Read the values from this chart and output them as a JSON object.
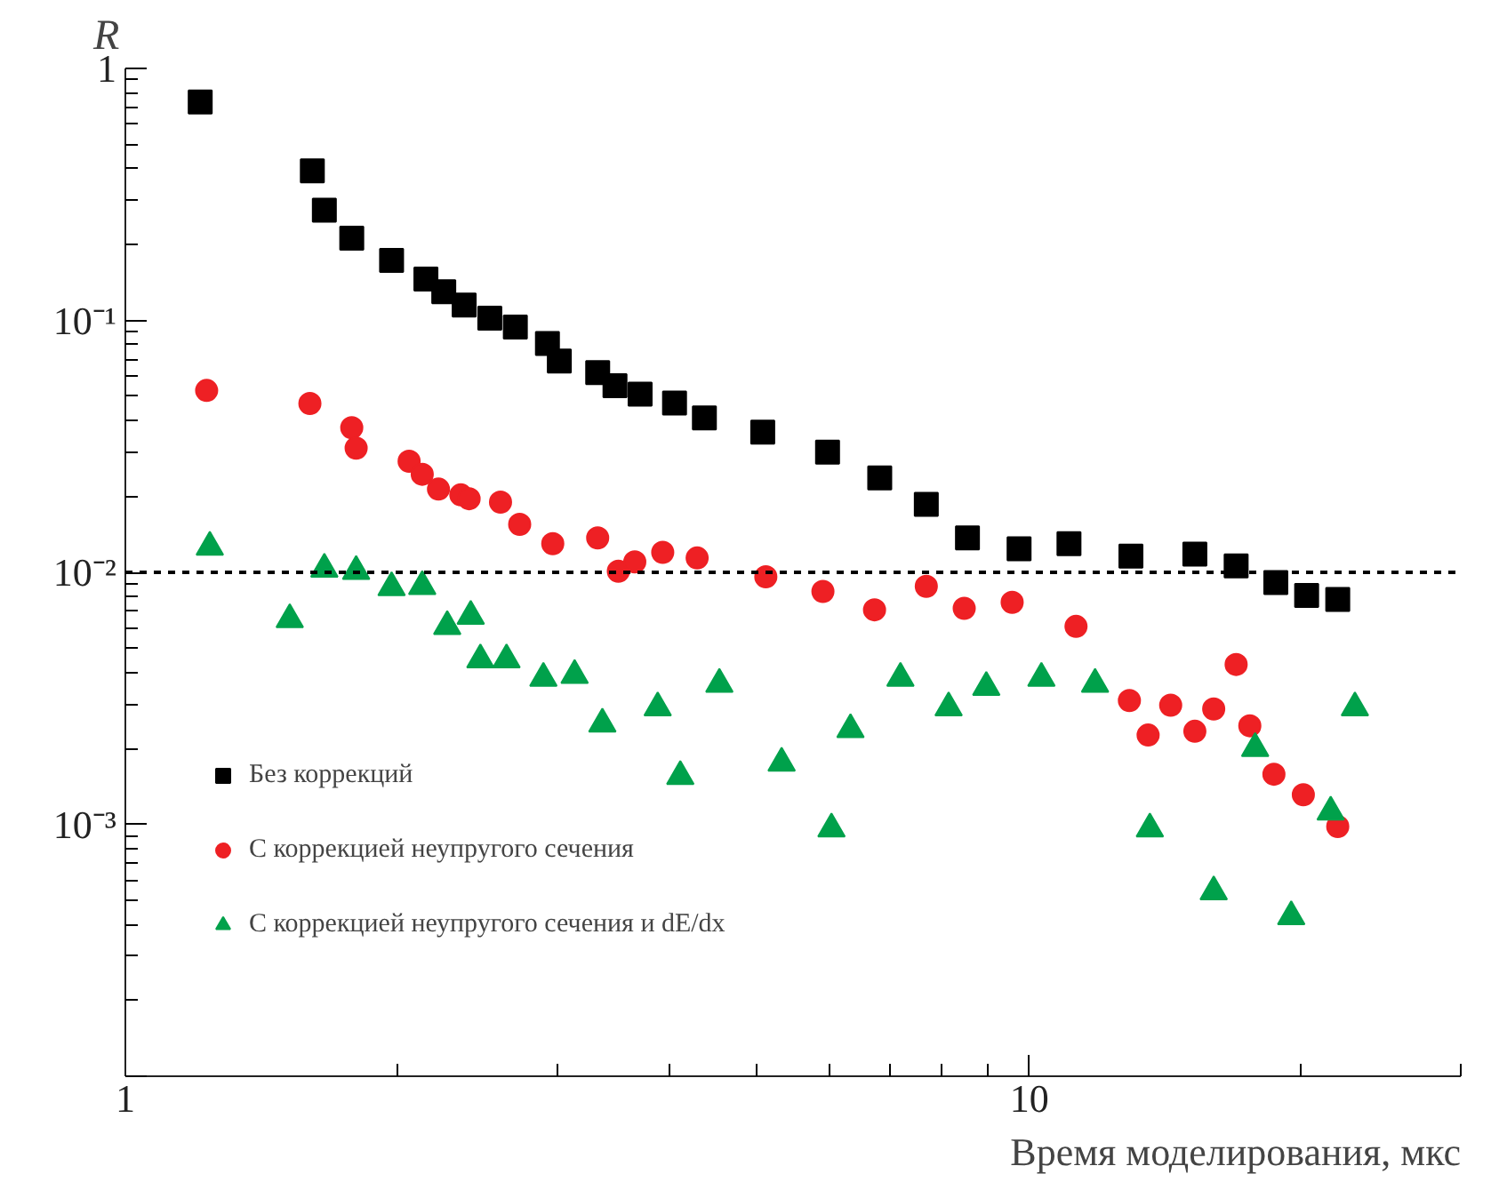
{
  "chart_data": {
    "type": "scatter",
    "xlabel": "Время моделирования, мкс",
    "ylabel": "R",
    "log": "xy",
    "grid": false,
    "legend": "bottom left",
    "xlim": [
      1,
      30
    ],
    "ylim": [
      0.0001,
      1
    ],
    "xticks": [
      1,
      10
    ],
    "yticks": [
      {
        "value": 0.0001,
        "label": null
      },
      {
        "value": 0.001,
        "label": "10⁻³"
      },
      {
        "value": 0.01,
        "label": "10⁻²"
      },
      {
        "value": 0.1,
        "label": "10⁻¹"
      },
      1
    ],
    "ref_lines": [
      {
        "axis": "y",
        "value": 0.01,
        "color": "#000000",
        "line_style": "dashed"
      }
    ],
    "series": [
      {
        "name": "Без коррекций",
        "color": "#000000",
        "marker": "square",
        "x": [
          1.21,
          1.61,
          1.66,
          1.78,
          1.97,
          2.15,
          2.25,
          2.37,
          2.53,
          2.7,
          2.93,
          3.02,
          3.33,
          3.48,
          3.71,
          4.05,
          4.37,
          5.07,
          5.98,
          6.83,
          7.69,
          8.54,
          9.74,
          11.06,
          12.95,
          15.24,
          16.93,
          18.73,
          20.26,
          21.93
        ],
        "values": [
          0.736,
          0.392,
          0.274,
          0.212,
          0.173,
          0.146,
          0.13,
          0.115,
          0.102,
          0.094,
          0.081,
          0.069,
          0.062,
          0.055,
          0.051,
          0.047,
          0.041,
          0.036,
          0.03,
          0.0237,
          0.0186,
          0.0137,
          0.0124,
          0.013,
          0.0116,
          0.0118,
          0.0106,
          0.0091,
          0.0081,
          0.0078
        ]
      },
      {
        "name": "С коррекцией неупругого сечения",
        "color": "#ee2024",
        "marker": "circle",
        "x": [
          1.23,
          1.6,
          1.78,
          1.8,
          2.06,
          2.13,
          2.22,
          2.35,
          2.4,
          2.6,
          2.73,
          2.97,
          3.33,
          3.51,
          3.66,
          3.93,
          4.29,
          5.11,
          5.91,
          6.74,
          7.69,
          8.47,
          9.57,
          11.26,
          12.9,
          13.53,
          14.33,
          15.24,
          15.99,
          16.93,
          17.53,
          18.64,
          20.09,
          21.93
        ],
        "values": [
          0.0527,
          0.0468,
          0.0375,
          0.0311,
          0.0276,
          0.0245,
          0.0214,
          0.0203,
          0.0196,
          0.019,
          0.0155,
          0.013,
          0.0137,
          0.0101,
          0.011,
          0.012,
          0.0114,
          0.0096,
          0.0084,
          0.0071,
          0.0088,
          0.0072,
          0.0076,
          0.0061,
          0.0031,
          0.00226,
          0.00297,
          0.00234,
          0.00287,
          0.00431,
          0.00246,
          0.00158,
          0.00131,
          0.00098
        ]
      },
      {
        "name": "С коррекцией неупругого сечения и dE/dx",
        "color": "#00a14b",
        "marker": "triangle",
        "x": [
          1.24,
          1.52,
          1.66,
          1.8,
          1.97,
          2.13,
          2.27,
          2.41,
          2.47,
          2.64,
          2.9,
          3.14,
          3.37,
          3.88,
          4.11,
          4.54,
          5.32,
          6.04,
          6.34,
          7.2,
          8.14,
          8.96,
          10.31,
          11.82,
          13.59,
          15.99,
          17.77,
          19.48,
          21.54,
          22.91
        ],
        "values": [
          0.0126,
          0.0065,
          0.0103,
          0.0101,
          0.0087,
          0.0088,
          0.0061,
          0.0067,
          0.0045,
          0.0045,
          0.0038,
          0.0039,
          0.0025,
          0.0029,
          0.00155,
          0.0036,
          0.00175,
          0.00096,
          0.00238,
          0.0038,
          0.0029,
          0.0035,
          0.0038,
          0.0036,
          0.00096,
          0.00054,
          0.002,
          0.00043,
          0.00112,
          0.0029
        ]
      }
    ]
  }
}
